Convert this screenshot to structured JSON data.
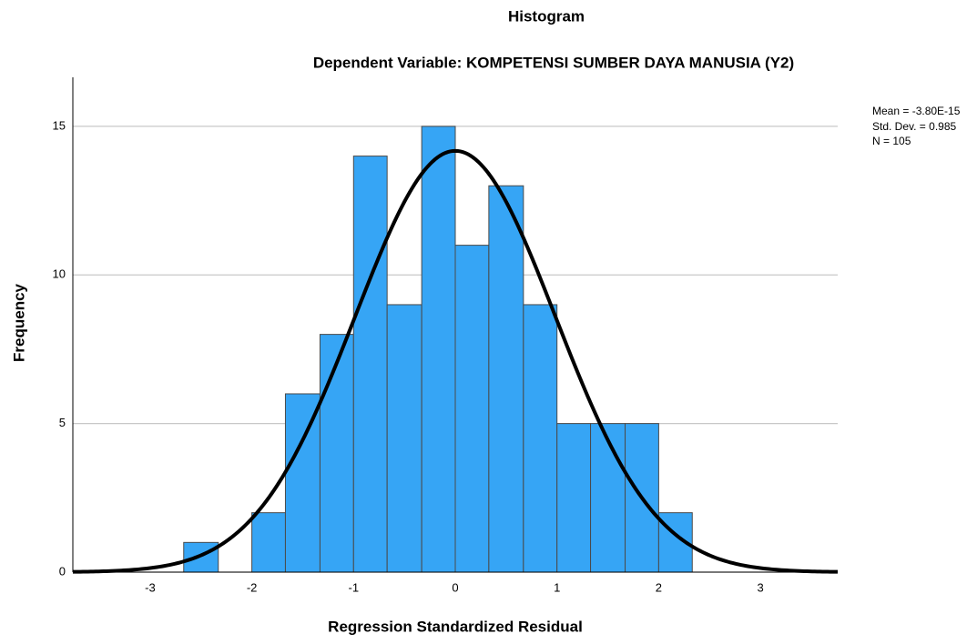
{
  "chart_data": {
    "type": "histogram",
    "title": "Histogram",
    "subtitle": "Dependent Variable: KOMPETENSI SUMBER DAYA MANUSIA (Y2)",
    "x_label": "Regression Standardized Residual",
    "y_label": "Frequency",
    "bins": [
      -2.67,
      -2.33,
      -2,
      -1.67,
      -1.33,
      -1,
      -0.67,
      -0.33,
      0,
      0.33,
      0.67,
      1,
      1.33,
      1.67,
      2,
      2.33
    ],
    "values": [
      1,
      0,
      2,
      6,
      8,
      14,
      9,
      15,
      11,
      13,
      9,
      5,
      5,
      5,
      2
    ],
    "color": "#36a5f5",
    "curve_color": "#000000",
    "xlim": [
      -3.76,
      3.76
    ],
    "ylim": [
      0,
      16.65
    ],
    "xticks": [
      -3,
      -2,
      -1,
      0,
      1,
      2,
      3
    ],
    "yticks": [
      0,
      5,
      10,
      15
    ],
    "grid": true,
    "stats": {
      "mean": {
        "value": -3.8e-15,
        "label": "Mean = -3.80E-15"
      },
      "std_dev": {
        "value": 0.985,
        "label": "Std. Dev. = 0.985"
      },
      "n": {
        "value": 105,
        "label": "N = 105"
      }
    }
  }
}
